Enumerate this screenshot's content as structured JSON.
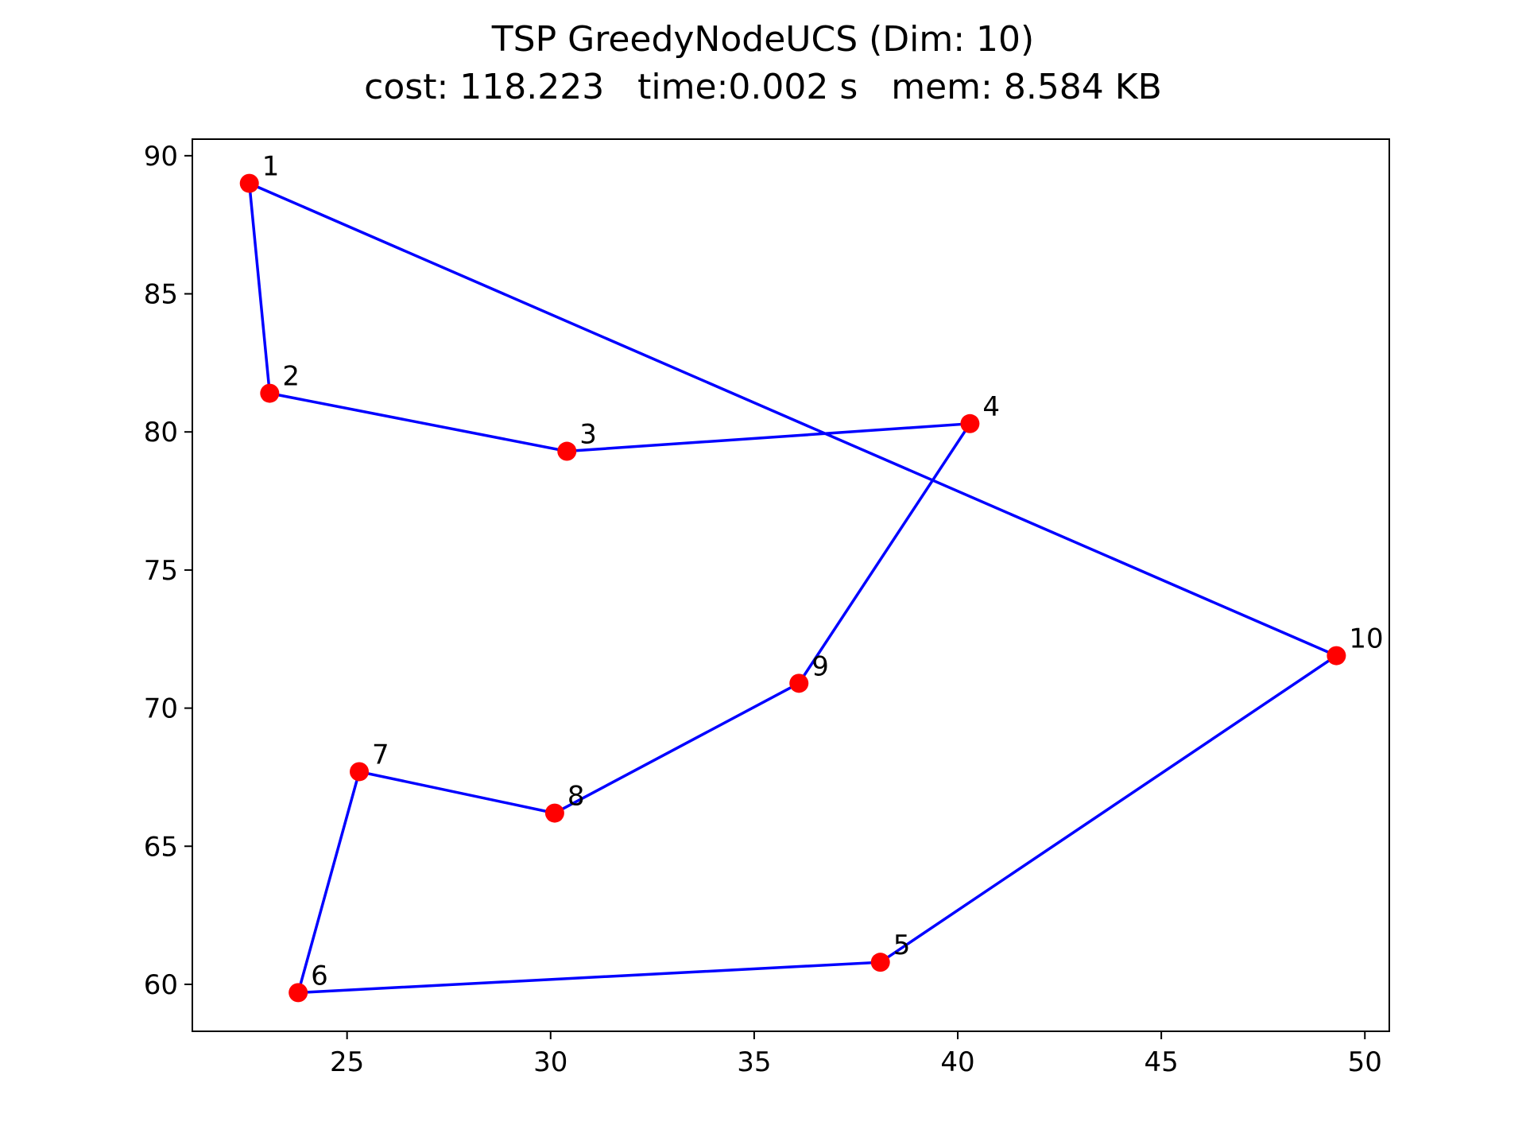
{
  "chart_data": {
    "type": "line",
    "title": "TSP GreedyNodeUCS (Dim: 10)",
    "subtitle": "cost: 118.223   time:0.002 s   mem: 8.584 KB",
    "xlabel": "",
    "ylabel": "",
    "xlim": [
      21.2,
      50.6
    ],
    "ylim": [
      58.3,
      90.6
    ],
    "xticks": [
      25,
      30,
      35,
      40,
      45,
      50
    ],
    "yticks": [
      60,
      65,
      70,
      75,
      80,
      85,
      90
    ],
    "grid": false,
    "points": [
      {
        "label": "1",
        "x": 22.6,
        "y": 89.0
      },
      {
        "label": "2",
        "x": 23.1,
        "y": 81.4
      },
      {
        "label": "3",
        "x": 30.4,
        "y": 79.3
      },
      {
        "label": "4",
        "x": 40.3,
        "y": 80.3
      },
      {
        "label": "5",
        "x": 38.1,
        "y": 60.8
      },
      {
        "label": "6",
        "x": 23.8,
        "y": 59.7
      },
      {
        "label": "7",
        "x": 25.3,
        "y": 67.7
      },
      {
        "label": "8",
        "x": 30.1,
        "y": 66.2
      },
      {
        "label": "9",
        "x": 36.1,
        "y": 70.9
      },
      {
        "label": "10",
        "x": 49.3,
        "y": 71.9
      }
    ],
    "tour": [
      "1",
      "2",
      "3",
      "4",
      "9",
      "8",
      "7",
      "6",
      "5",
      "10",
      "1"
    ],
    "colors": {
      "points": "#ff0000",
      "path": "#0000ff"
    }
  }
}
